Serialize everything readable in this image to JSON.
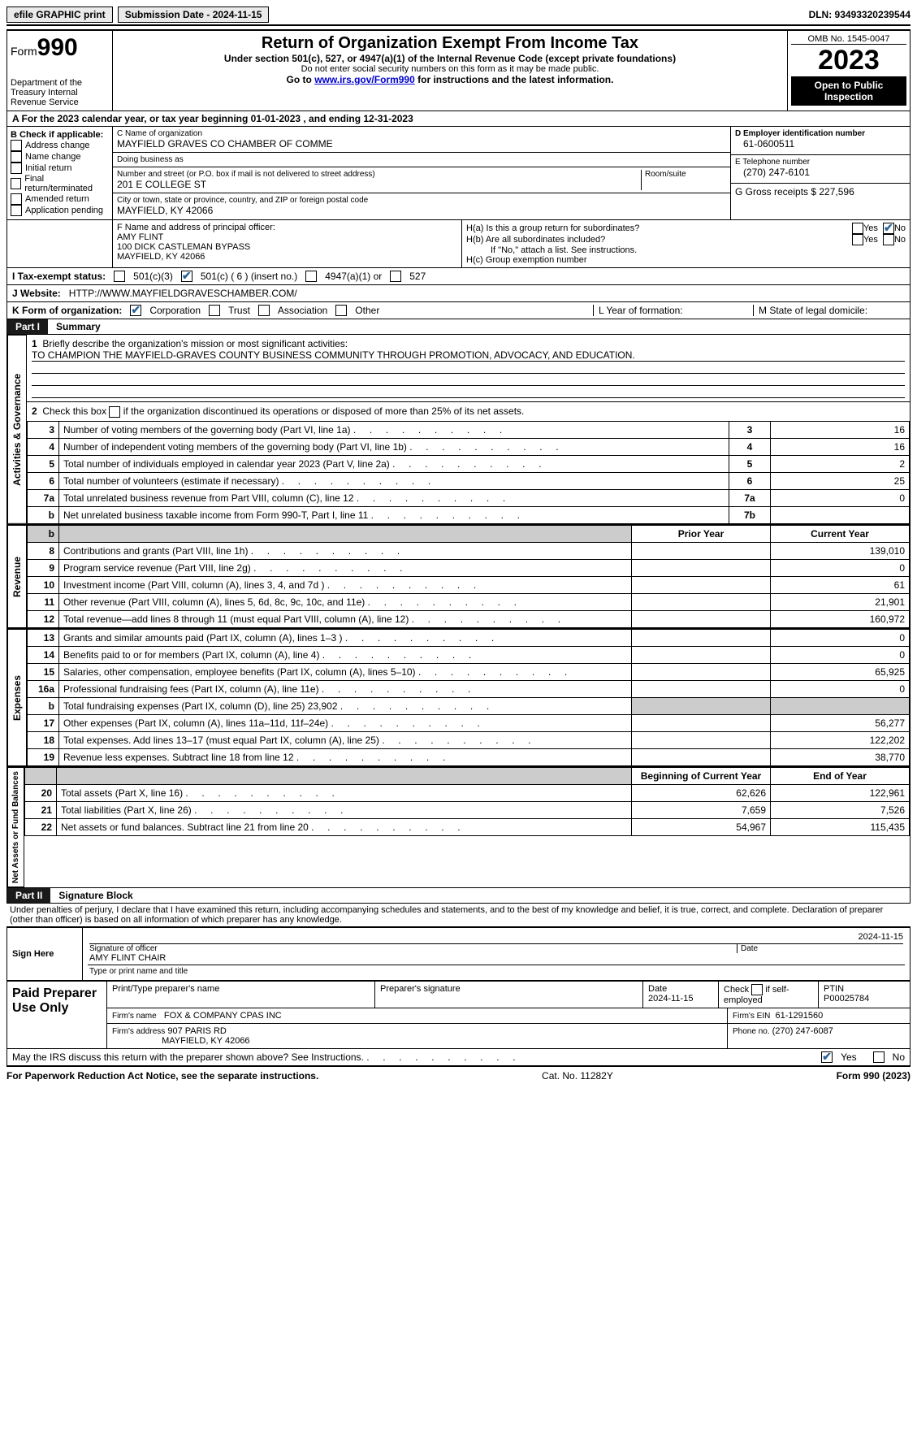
{
  "topbar": {
    "efile": "efile GRAPHIC print",
    "submission_label": "Submission Date - 2024-11-15",
    "dln_label": "DLN: 93493320239544"
  },
  "header": {
    "form_prefix": "Form",
    "form_number": "990",
    "dept": "Department of the Treasury\nInternal Revenue Service",
    "title": "Return of Organization Exempt From Income Tax",
    "subtitle": "Under section 501(c), 527, or 4947(a)(1) of the Internal Revenue Code (except private foundations)",
    "ssn_note": "Do not enter social security numbers on this form as it may be made public.",
    "goto": "Go to www.irs.gov/Form990 for instructions and the latest information.",
    "irs_link": "www.irs.gov/Form990",
    "omb": "OMB No. 1545-0047",
    "year": "2023",
    "open": "Open to Public Inspection"
  },
  "row_a": "A For the 2023 calendar year, or tax year beginning 01-01-2023    , and ending 12-31-2023",
  "box_b": {
    "title": "B Check if applicable:",
    "items": [
      "Address change",
      "Name change",
      "Initial return",
      "Final return/terminated",
      "Amended return",
      "Application pending"
    ]
  },
  "box_c": {
    "name_label": "C Name of organization",
    "name": "MAYFIELD GRAVES CO CHAMBER OF COMME",
    "dba_label": "Doing business as",
    "dba": "",
    "street_label": "Number and street (or P.O. box if mail is not delivered to street address)",
    "street": "201 E COLLEGE ST",
    "room_label": "Room/suite",
    "city_label": "City or town, state or province, country, and ZIP or foreign postal code",
    "city": "MAYFIELD, KY  42066"
  },
  "box_d": {
    "label": "D Employer identification number",
    "value": "61-0600511"
  },
  "box_e": {
    "label": "E Telephone number",
    "value": "(270) 247-6101"
  },
  "box_g": {
    "label": "G Gross receipts $ 227,596"
  },
  "box_f": {
    "label": "F  Name and address of principal officer:",
    "name": "AMY FLINT",
    "addr1": "100 DICK CASTLEMAN BYPASS",
    "addr2": "MAYFIELD, KY  42066"
  },
  "box_h": {
    "a": "H(a)  Is this a group return for subordinates?",
    "b": "H(b)  Are all subordinates included?",
    "b_note": "If \"No,\" attach a list. See instructions.",
    "c": "H(c)  Group exemption number",
    "yes": "Yes",
    "no": "No"
  },
  "tax_exempt": {
    "label": "I   Tax-exempt status:",
    "o1": "501(c)(3)",
    "o2": "501(c) ( 6 ) (insert no.)",
    "o3": "4947(a)(1) or",
    "o4": "527"
  },
  "website": {
    "label": "J   Website:",
    "value": "HTTP://WWW.MAYFIELDGRAVESCHAMBER.COM/"
  },
  "row_k": {
    "label": "K Form of organization:",
    "o1": "Corporation",
    "o2": "Trust",
    "o3": "Association",
    "o4": "Other",
    "l": "L Year of formation:",
    "m": "M State of legal domicile:"
  },
  "part1": {
    "label": "Part I",
    "title": "Summary",
    "q1": "Briefly describe the organization's mission or most significant activities:",
    "mission": "TO CHAMPION THE MAYFIELD-GRAVES COUNTY BUSINESS COMMUNITY THROUGH PROMOTION, ADVOCACY, AND EDUCATION.",
    "q2": "Check this box       if the organization discontinued its operations or disposed of more than 25% of its net assets.",
    "vlabel_gov": "Activities & Governance",
    "vlabel_rev": "Revenue",
    "vlabel_exp": "Expenses",
    "vlabel_net": "Net Assets or Fund Balances",
    "prior_year": "Prior Year",
    "current_year": "Current Year",
    "beg_year": "Beginning of Current Year",
    "end_year": "End of Year",
    "lines_gov": [
      {
        "n": "3",
        "t": "Number of voting members of the governing body (Part VI, line 1a)",
        "box": "3",
        "v": "16"
      },
      {
        "n": "4",
        "t": "Number of independent voting members of the governing body (Part VI, line 1b)",
        "box": "4",
        "v": "16"
      },
      {
        "n": "5",
        "t": "Total number of individuals employed in calendar year 2023 (Part V, line 2a)",
        "box": "5",
        "v": "2"
      },
      {
        "n": "6",
        "t": "Total number of volunteers (estimate if necessary)",
        "box": "6",
        "v": "25"
      },
      {
        "n": "7a",
        "t": "Total unrelated business revenue from Part VIII, column (C), line 12",
        "box": "7a",
        "v": "0"
      },
      {
        "n": "b",
        "t": "Net unrelated business taxable income from Form 990-T, Part I, line 11",
        "box": "7b",
        "v": ""
      }
    ],
    "lines_rev": [
      {
        "n": "8",
        "t": "Contributions and grants (Part VIII, line 1h)",
        "p": "",
        "c": "139,010"
      },
      {
        "n": "9",
        "t": "Program service revenue (Part VIII, line 2g)",
        "p": "",
        "c": "0"
      },
      {
        "n": "10",
        "t": "Investment income (Part VIII, column (A), lines 3, 4, and 7d )",
        "p": "",
        "c": "61"
      },
      {
        "n": "11",
        "t": "Other revenue (Part VIII, column (A), lines 5, 6d, 8c, 9c, 10c, and 11e)",
        "p": "",
        "c": "21,901"
      },
      {
        "n": "12",
        "t": "Total revenue—add lines 8 through 11 (must equal Part VIII, column (A), line 12)",
        "p": "",
        "c": "160,972"
      }
    ],
    "lines_exp": [
      {
        "n": "13",
        "t": "Grants and similar amounts paid (Part IX, column (A), lines 1–3 )",
        "p": "",
        "c": "0"
      },
      {
        "n": "14",
        "t": "Benefits paid to or for members (Part IX, column (A), line 4)",
        "p": "",
        "c": "0"
      },
      {
        "n": "15",
        "t": "Salaries, other compensation, employee benefits (Part IX, column (A), lines 5–10)",
        "p": "",
        "c": "65,925"
      },
      {
        "n": "16a",
        "t": "Professional fundraising fees (Part IX, column (A), line 11e)",
        "p": "",
        "c": "0"
      },
      {
        "n": "b",
        "t": "Total fundraising expenses (Part IX, column (D), line 25) 23,902",
        "p": "GRAY",
        "c": "GRAY"
      },
      {
        "n": "17",
        "t": "Other expenses (Part IX, column (A), lines 11a–11d, 11f–24e)",
        "p": "",
        "c": "56,277"
      },
      {
        "n": "18",
        "t": "Total expenses. Add lines 13–17 (must equal Part IX, column (A), line 25)",
        "p": "",
        "c": "122,202"
      },
      {
        "n": "19",
        "t": "Revenue less expenses. Subtract line 18 from line 12",
        "p": "",
        "c": "38,770"
      }
    ],
    "lines_net": [
      {
        "n": "20",
        "t": "Total assets (Part X, line 16)",
        "p": "62,626",
        "c": "122,961"
      },
      {
        "n": "21",
        "t": "Total liabilities (Part X, line 26)",
        "p": "7,659",
        "c": "7,526"
      },
      {
        "n": "22",
        "t": "Net assets or fund balances. Subtract line 21 from line 20",
        "p": "54,967",
        "c": "115,435"
      }
    ]
  },
  "part2": {
    "label": "Part II",
    "title": "Signature Block",
    "declaration": "Under penalties of perjury, I declare that I have examined this return, including accompanying schedules and statements, and to the best of my knowledge and belief, it is true, correct, and complete. Declaration of preparer (other than officer) is based on all information of which preparer has any knowledge.",
    "sign_here": "Sign Here",
    "sig_officer": "Signature of officer",
    "officer_name": "AMY FLINT CHAIR",
    "sig_date": "2024-11-15",
    "date_label": "Date",
    "type_name": "Type or print name and title",
    "paid": "Paid Preparer Use Only",
    "prep_name_label": "Print/Type preparer's name",
    "prep_sig_label": "Preparer's signature",
    "prep_date": "2024-11-15",
    "check_self": "Check        if self-employed",
    "ptin_label": "PTIN",
    "ptin": "P00025784",
    "firm_name_label": "Firm's name",
    "firm_name": "FOX & COMPANY CPAS INC",
    "firm_ein_label": "Firm's EIN",
    "firm_ein": "61-1291560",
    "firm_addr_label": "Firm's address",
    "firm_addr1": "907 PARIS RD",
    "firm_addr2": "MAYFIELD, KY  42066",
    "phone_label": "Phone no.",
    "phone": "(270) 247-6087",
    "discuss": "May the IRS discuss this return with the preparer shown above? See Instructions."
  },
  "footer": {
    "left": "For Paperwork Reduction Act Notice, see the separate instructions.",
    "mid": "Cat. No. 11282Y",
    "right": "Form 990 (2023)"
  }
}
